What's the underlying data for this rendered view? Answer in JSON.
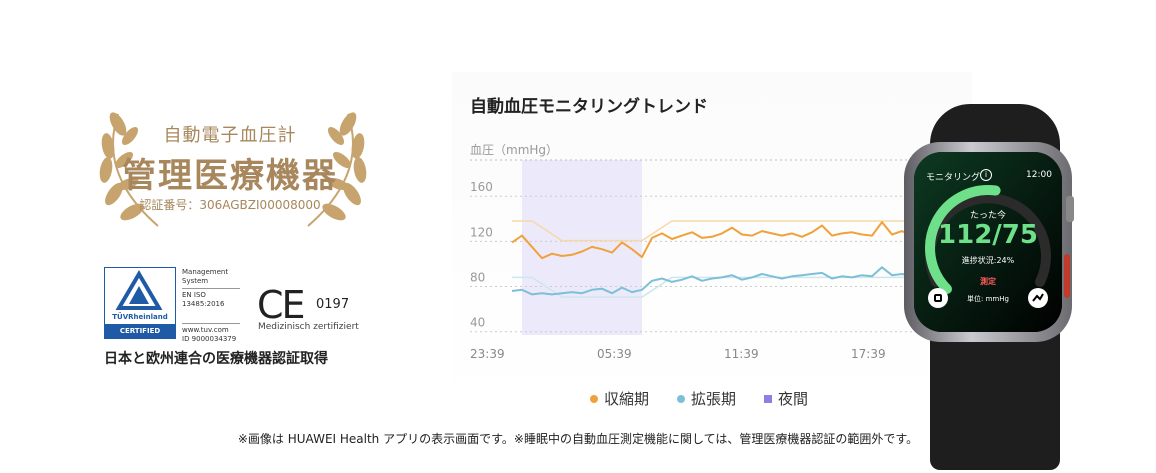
{
  "badge": {
    "line1": "自動電子血圧計",
    "line2": "管理医療機器",
    "line3": "認証番号：306AGBZI00008000"
  },
  "certs": {
    "tuv": {
      "brand": "TÜVRheinland",
      "certified": "CERTIFIED",
      "info": [
        "Management",
        "System",
        "EN ISO",
        "13485:2016",
        "www.tuv.com",
        "ID 9000034379"
      ]
    },
    "ce": {
      "mark": "CE",
      "number": "0197",
      "subtitle": "Medizinisch zertifiziert"
    },
    "caption": "日本と欧州連合の医療機器認証取得"
  },
  "chart_data": {
    "type": "line",
    "title": "自動血圧モニタリングトレンド",
    "ylabel": "血圧（mmHg）",
    "yticks": [
      40,
      80,
      120,
      160
    ],
    "ylim": [
      30,
      185
    ],
    "xticks": [
      "23:39",
      "05:39",
      "11:39",
      "17:39"
    ],
    "x_hours": [
      0,
      0.5,
      1,
      1.5,
      2,
      2.5,
      3,
      3.5,
      4,
      4.5,
      5,
      5.5,
      6,
      6.5,
      7,
      7.5,
      8,
      8.5,
      9,
      9.5,
      10,
      10.5,
      11,
      11.5,
      12,
      12.5,
      13,
      13.5,
      14,
      14.5,
      15,
      15.5,
      16,
      16.5,
      17,
      17.5,
      18,
      18.5,
      19,
      19.5,
      20
    ],
    "night_range_hours": [
      0.5,
      6.5
    ],
    "series": [
      {
        "name": "収縮期",
        "color": "#f0a23a",
        "values": [
          112,
          118,
          108,
          98,
          102,
          100,
          101,
          104,
          108,
          106,
          103,
          112,
          106,
          99,
          116,
          120,
          115,
          118,
          121,
          116,
          117,
          120,
          125,
          119,
          118,
          122,
          120,
          118,
          120,
          117,
          121,
          127,
          118,
          120,
          121,
          119,
          118,
          130,
          119,
          122,
          118
        ]
      },
      {
        "name": "拡張期",
        "color": "#7cc0d8",
        "values": [
          69,
          70,
          66,
          67,
          66,
          67,
          68,
          67,
          70,
          71,
          67,
          72,
          68,
          70,
          78,
          80,
          77,
          79,
          82,
          78,
          80,
          81,
          83,
          79,
          81,
          84,
          82,
          80,
          82,
          83,
          84,
          85,
          80,
          82,
          81,
          83,
          82,
          90,
          83,
          84,
          82
        ]
      }
    ],
    "reference_series": [
      {
        "values_start": 131,
        "values_end": 126
      },
      {
        "values_start": 81,
        "values_end": 76
      }
    ],
    "legend": [
      {
        "label": "収縮期",
        "color": "#f0a23a",
        "shape": "dot"
      },
      {
        "label": "拡張期",
        "color": "#7cc0d8",
        "shape": "dot"
      },
      {
        "label": "夜間",
        "color": "#8a80e6",
        "shape": "square"
      }
    ],
    "night_color": "#ece9fb"
  },
  "watch": {
    "status": "モニタリング",
    "time": "12:00",
    "subtitle": "たった今",
    "reading": "112/75",
    "progress": "進捗状況:24%",
    "progress_value": 0.24,
    "measure": "測定",
    "unit": "単位: mmHg"
  },
  "footnote": "※画像は HUAWEI Health アプリの表示画面です。※睡眠中の自動血圧測定機能に関しては、管理医療機器認証の範囲外です。"
}
